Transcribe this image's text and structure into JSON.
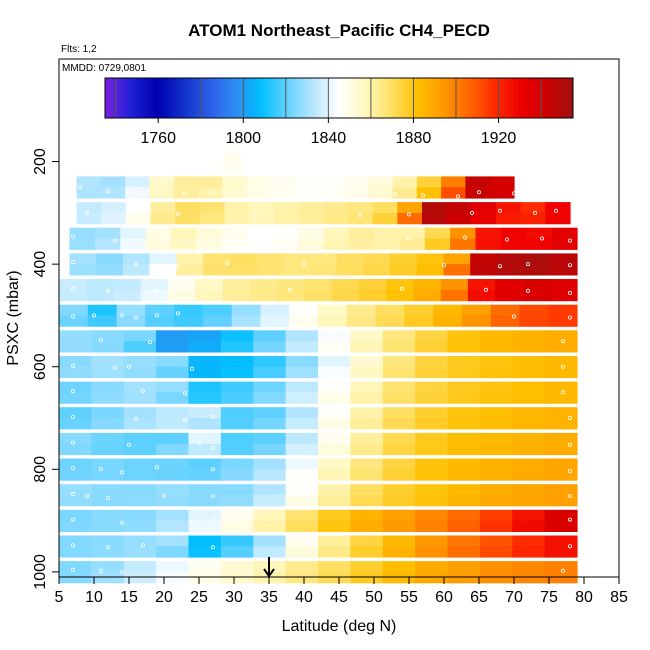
{
  "chart_data": {
    "type": "heatmap",
    "title": "ATOM1 Northeast_Pacific CH4_PECD",
    "flights_label": "Flts: 1,2",
    "dates_label": "MMDD: 0729,0801",
    "xlabel": "Latitude (deg N)",
    "ylabel": "PSXC (mbar)",
    "xlim": [
      5,
      85
    ],
    "ylim": [
      1010,
      0
    ],
    "xticks": [
      "5",
      "10",
      "15",
      "20",
      "25",
      "30",
      "35",
      "40",
      "45",
      "50",
      "55",
      "60",
      "65",
      "70",
      "75",
      "80",
      "85"
    ],
    "yticks": [
      "200",
      "400",
      "600",
      "800",
      "1000"
    ],
    "colorbar": {
      "range": [
        1735,
        1955
      ],
      "ticks": [
        "1760",
        "1800",
        "1840",
        "1880",
        "1920"
      ],
      "colors": [
        "#7b1fe0",
        "#2020d8",
        "#0000b0",
        "#1030c8",
        "#2a5ce8",
        "#2f8bf0",
        "#00bfff",
        "#63d1ff",
        "#b6e6ff",
        "#ffffff",
        "#fff8c0",
        "#ffe066",
        "#ffc000",
        "#ff9900",
        "#ff6600",
        "#ff2a00",
        "#ee0000",
        "#cc0000",
        "#a01010"
      ],
      "segment_edges": [
        1740,
        1780,
        1800,
        1820,
        1840,
        1860,
        1880,
        1900,
        1920,
        1940
      ]
    },
    "arrow_marker": {
      "latitude": 35
    },
    "rows": [
      {
        "p": 200,
        "lat": [
          26,
          31
        ],
        "v": [
          1845,
          1848
        ]
      },
      {
        "p": 250,
        "lat": [
          7.5,
          70
        ],
        "v": [
          1832,
          1830,
          1838,
          1855,
          1862,
          1862,
          1855,
          1850,
          1848,
          1846,
          1846,
          1848,
          1852,
          1860,
          1875,
          1900,
          1945,
          1940
        ]
      },
      {
        "p": 300,
        "lat": [
          7.5,
          78
        ],
        "v": [
          1835,
          1838,
          1845,
          1862,
          1870,
          1868,
          1860,
          1858,
          1860,
          1862,
          1864,
          1866,
          1870,
          1890,
          1950,
          1945,
          1935,
          1925,
          1918,
          1930
        ]
      },
      {
        "p": 350,
        "lat": [
          6.5,
          79
        ],
        "v": [
          1828,
          1830,
          1840,
          1850,
          1858,
          1852,
          1848,
          1845,
          1846,
          1850,
          1858,
          1862,
          1860,
          1860,
          1872,
          1895,
          1925,
          1930,
          1928,
          1935
        ]
      },
      {
        "p": 400,
        "lat": [
          6.5,
          79
        ],
        "v": [
          1830,
          1826,
          1832,
          1840,
          1860,
          1868,
          1870,
          1868,
          1866,
          1866,
          1870,
          1872,
          1876,
          1880,
          1890,
          1945,
          1950,
          1952,
          1948
        ]
      },
      {
        "p": 450,
        "lat": [
          5,
          79
        ],
        "v": [
          1836,
          1834,
          1835,
          1840,
          1848,
          1856,
          1862,
          1864,
          1866,
          1868,
          1872,
          1875,
          1880,
          1885,
          1895,
          1925,
          1935,
          1938,
          1936
        ]
      },
      {
        "p": 500,
        "lat": [
          5,
          79
        ],
        "v": [
          1825,
          1812,
          1828,
          1820,
          1815,
          1818,
          1828,
          1838,
          1846,
          1856,
          1864,
          1870,
          1876,
          1884,
          1892,
          1905,
          1912,
          1915
        ]
      },
      {
        "p": 550,
        "lat": [
          5,
          79
        ],
        "v": [
          1828,
          1826,
          1824,
          1800,
          1802,
          1810,
          1820,
          1832,
          1844,
          1856,
          1866,
          1874,
          1880,
          1884,
          1886,
          1888
        ]
      },
      {
        "p": 600,
        "lat": [
          5,
          79
        ],
        "v": [
          1826,
          1830,
          1828,
          1826,
          1806,
          1808,
          1814,
          1826,
          1840,
          1854,
          1866,
          1874,
          1878,
          1880,
          1882,
          1884
        ]
      },
      {
        "p": 650,
        "lat": [
          5,
          79
        ],
        "v": [
          1822,
          1826,
          1830,
          1828,
          1812,
          1816,
          1822,
          1834,
          1846,
          1858,
          1868,
          1874,
          1878,
          1880,
          1882,
          1884
        ]
      },
      {
        "p": 700,
        "lat": [
          5,
          79
        ],
        "v": [
          1820,
          1824,
          1830,
          1834,
          1836,
          1818,
          1820,
          1832,
          1846,
          1860,
          1870,
          1876,
          1880,
          1882,
          1884,
          1886
        ]
      },
      {
        "p": 750,
        "lat": [
          5,
          79
        ],
        "v": [
          1826,
          1822,
          1820,
          1820,
          1840,
          1818,
          1820,
          1834,
          1848,
          1862,
          1872,
          1878,
          1882,
          1884,
          1886,
          1888
        ]
      },
      {
        "p": 800,
        "lat": [
          5,
          79
        ],
        "v": [
          1822,
          1824,
          1822,
          1822,
          1820,
          1824,
          1830,
          1842,
          1856,
          1866,
          1874,
          1880,
          1884,
          1886,
          1888,
          1890
        ]
      },
      {
        "p": 850,
        "lat": [
          5,
          79
        ],
        "v": [
          1828,
          1826,
          1826,
          1828,
          1826,
          1826,
          1832,
          1846,
          1860,
          1870,
          1876,
          1880,
          1884,
          1888,
          1890,
          1892
        ]
      },
      {
        "p": 900,
        "lat": [
          5,
          79
        ],
        "v": [
          1824,
          1826,
          1826,
          1830,
          1840,
          1848,
          1858,
          1868,
          1878,
          1886,
          1892,
          1898,
          1905,
          1914,
          1925,
          1938
        ]
      },
      {
        "p": 950,
        "lat": [
          5,
          79
        ],
        "v": [
          1825,
          1826,
          1828,
          1830,
          1808,
          1815,
          1830,
          1848,
          1862,
          1874,
          1884,
          1894,
          1902,
          1910,
          1918,
          1926
        ]
      },
      {
        "p": 1000,
        "lat": [
          5,
          79
        ],
        "v": [
          1825,
          1828,
          1835,
          1842,
          1848,
          1854,
          1858,
          1864,
          1870,
          1876,
          1882,
          1888,
          1892,
          1896,
          1898,
          1900
        ]
      }
    ],
    "points": [
      [
        8,
        250
      ],
      [
        12,
        258
      ],
      [
        17,
        262
      ],
      [
        23,
        262
      ],
      [
        27,
        260
      ],
      [
        35,
        262
      ],
      [
        53,
        264
      ],
      [
        57,
        266
      ],
      [
        62,
        268
      ],
      [
        65,
        260
      ],
      [
        70,
        262
      ],
      [
        74,
        264
      ],
      [
        77,
        268
      ],
      [
        9,
        300
      ],
      [
        15,
        302
      ],
      [
        22,
        302
      ],
      [
        33,
        306
      ],
      [
        48,
        304
      ],
      [
        55,
        303
      ],
      [
        64,
        300
      ],
      [
        68,
        296
      ],
      [
        73,
        300
      ],
      [
        76,
        296
      ],
      [
        7,
        346
      ],
      [
        13,
        354
      ],
      [
        20,
        352
      ],
      [
        43,
        352
      ],
      [
        55,
        350
      ],
      [
        63,
        348
      ],
      [
        69,
        352
      ],
      [
        74,
        350
      ],
      [
        78,
        354
      ],
      [
        7,
        396
      ],
      [
        16,
        400
      ],
      [
        22,
        402
      ],
      [
        29,
        398
      ],
      [
        40,
        400
      ],
      [
        60,
        402
      ],
      [
        68,
        404
      ],
      [
        72,
        400
      ],
      [
        78,
        402
      ],
      [
        7,
        448
      ],
      [
        12,
        452
      ],
      [
        19,
        452
      ],
      [
        38,
        450
      ],
      [
        54,
        448
      ],
      [
        66,
        450
      ],
      [
        72,
        452
      ],
      [
        78,
        456
      ],
      [
        7,
        502
      ],
      [
        10,
        500
      ],
      [
        14,
        500
      ],
      [
        16,
        504
      ],
      [
        19,
        500
      ],
      [
        22,
        496
      ],
      [
        70,
        502
      ],
      [
        78,
        504
      ],
      [
        11,
        548
      ],
      [
        18,
        552
      ],
      [
        77,
        550
      ],
      [
        7,
        598
      ],
      [
        13,
        602
      ],
      [
        15,
        600
      ],
      [
        24,
        604
      ],
      [
        77,
        600
      ],
      [
        7,
        648
      ],
      [
        17,
        648
      ],
      [
        23,
        652
      ],
      [
        77,
        650
      ],
      [
        7,
        698
      ],
      [
        16,
        702
      ],
      [
        23,
        704
      ],
      [
        27,
        698
      ],
      [
        78,
        700
      ],
      [
        7,
        748
      ],
      [
        15,
        752
      ],
      [
        25,
        748
      ],
      [
        27,
        758
      ],
      [
        78,
        752
      ],
      [
        7,
        798
      ],
      [
        11,
        800
      ],
      [
        14,
        806
      ],
      [
        19,
        796
      ],
      [
        27,
        800
      ],
      [
        78,
        804
      ],
      [
        7,
        848
      ],
      [
        9,
        852
      ],
      [
        12,
        856
      ],
      [
        20,
        852
      ],
      [
        27,
        852
      ],
      [
        78,
        852
      ],
      [
        7,
        898
      ],
      [
        14,
        904
      ],
      [
        24,
        902
      ],
      [
        27,
        898
      ],
      [
        78,
        898
      ],
      [
        7,
        948
      ],
      [
        12,
        952
      ],
      [
        17,
        948
      ],
      [
        27,
        952
      ],
      [
        78,
        950
      ],
      [
        7,
        996
      ],
      [
        11,
        998
      ],
      [
        14,
        1000
      ],
      [
        77,
        998
      ]
    ]
  }
}
